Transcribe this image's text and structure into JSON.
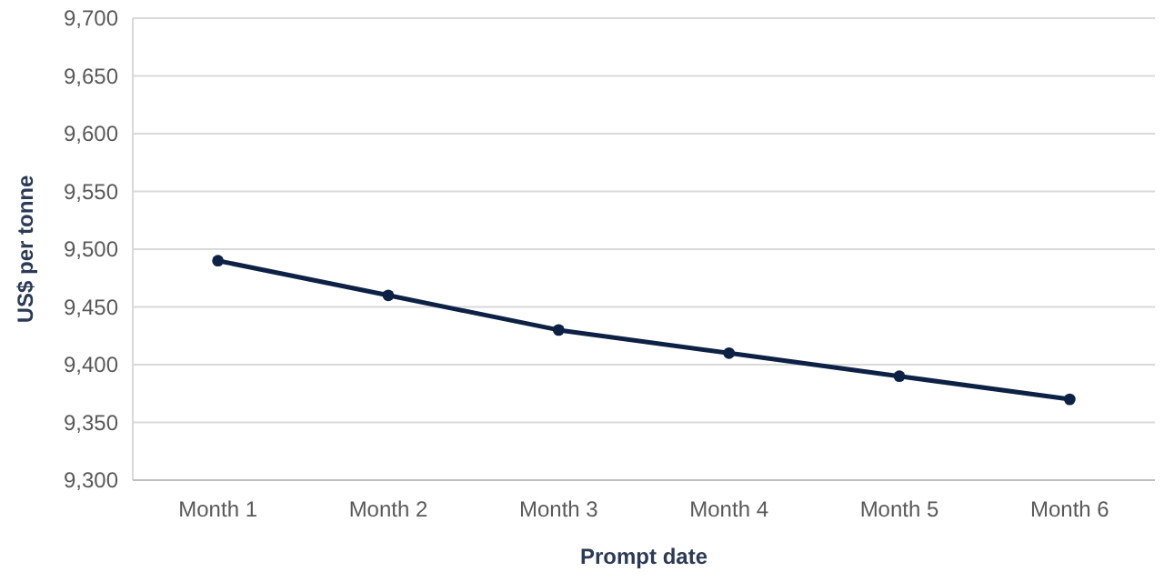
{
  "chart_data": {
    "type": "line",
    "xlabel": "Prompt date",
    "ylabel": "US$ per tonne",
    "categories": [
      "Month 1",
      "Month 2",
      "Month 3",
      "Month 4",
      "Month 5",
      "Month 6"
    ],
    "series": [
      {
        "color": "#0d2145",
        "values": [
          9490,
          9460,
          9430,
          9410,
          9390,
          9370
        ]
      }
    ],
    "ylim": [
      9300,
      9700
    ],
    "yticks": [
      {
        "value": 9300,
        "label": "9,300"
      },
      {
        "value": 9350,
        "label": "9,350"
      },
      {
        "value": 9400,
        "label": "9,400"
      },
      {
        "value": 9450,
        "label": "9,450"
      },
      {
        "value": 9500,
        "label": "9,500"
      },
      {
        "value": 9550,
        "label": "9,550"
      },
      {
        "value": 9600,
        "label": "9,600"
      },
      {
        "value": 9650,
        "label": "9,650"
      },
      {
        "value": 9700,
        "label": "9,700"
      }
    ],
    "grid": "y",
    "marker": "circle",
    "line_style": "solid"
  }
}
